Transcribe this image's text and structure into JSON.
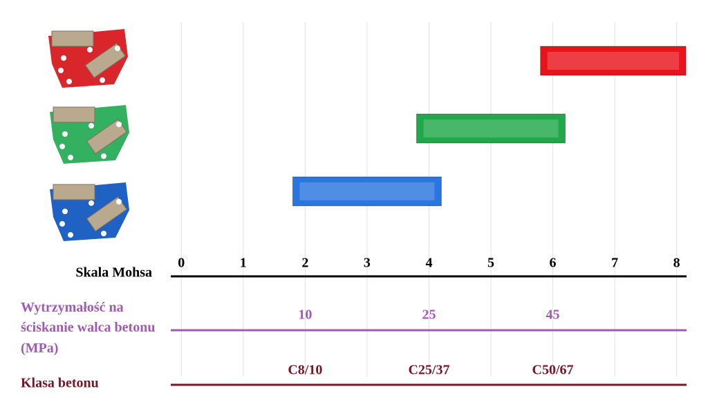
{
  "chart_data": {
    "type": "floating_bar",
    "categories": [
      null,
      null,
      null
    ],
    "values": [
      [
        5.8,
        8.15
      ],
      [
        3.8,
        6.2
      ],
      [
        1.8,
        4.2
      ]
    ],
    "colors": [
      "#e8141c",
      "#22a84a",
      "#2a76e0"
    ],
    "xlim": [
      -0.17,
      8.16
    ],
    "xticks": [
      0,
      1,
      2,
      3,
      4,
      5,
      6,
      7,
      8
    ],
    "xlabel": "Skala Mohsa",
    "grid": true,
    "secondary_scales": [
      {
        "label": "Wytrzymałość na ściskanie walca betonu (MPa)",
        "color": "#a259b5",
        "ticks": [
          {
            "value": 2,
            "label": "10"
          },
          {
            "value": 4,
            "label": "25"
          },
          {
            "value": 6,
            "label": "45"
          }
        ]
      },
      {
        "label": "Klasa betonu",
        "color": "#7a1526",
        "ticks": [
          {
            "value": 2,
            "label": "C8/10"
          },
          {
            "value": 4,
            "label": "C25/37"
          },
          {
            "value": 6,
            "label": "C50/67"
          }
        ]
      }
    ]
  }
}
